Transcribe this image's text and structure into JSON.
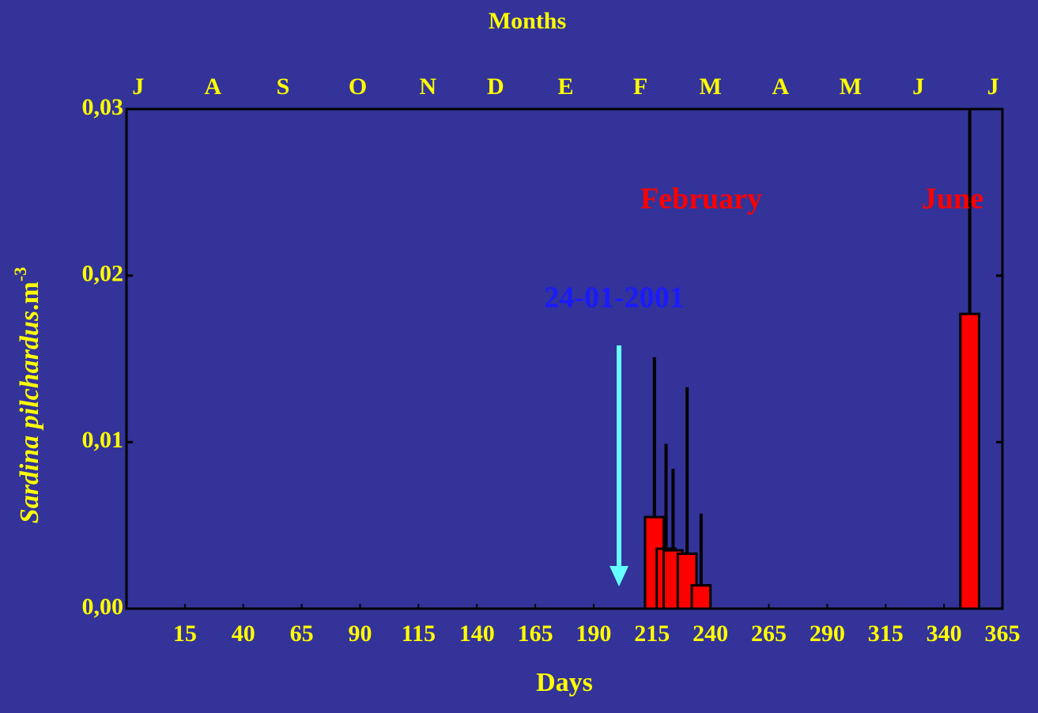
{
  "chart_data": {
    "type": "bar",
    "title": "Months",
    "xlabel": "Days",
    "ylabel": {
      "species": "Sardina pilchardus",
      "unit": ".m",
      "exponent": "-3"
    },
    "x": [
      1,
      13,
      34,
      43,
      58,
      72,
      86,
      98,
      119,
      132,
      146,
      160,
      177,
      191,
      205,
      216,
      221,
      224,
      230,
      236,
      254,
      293,
      306,
      322,
      337,
      351
    ],
    "values": [
      0,
      0,
      0,
      0,
      0,
      0,
      0,
      0,
      0,
      0,
      0,
      0,
      0,
      0,
      0,
      0.0055,
      0.0036,
      0.0035,
      0.0033,
      0.0014,
      0,
      0,
      0,
      0,
      0,
      0.0177
    ],
    "errors": [
      0,
      0,
      0,
      0,
      0,
      0,
      0,
      0,
      0,
      0,
      0,
      0,
      0,
      0,
      0,
      0.0096,
      0.0063,
      0.0049,
      0.01,
      0.0043,
      0,
      0,
      0,
      0,
      0,
      0.0123
    ],
    "bar_width": 8,
    "color": "#ff0000",
    "xlim": [
      -10,
      365
    ],
    "xticks": [
      15,
      40,
      65,
      90,
      115,
      140,
      165,
      190,
      215,
      240,
      265,
      290,
      315,
      340,
      365
    ],
    "month_ticks": [
      {
        "value": -5,
        "label": "J"
      },
      {
        "value": 27,
        "label": "A"
      },
      {
        "value": 57,
        "label": "S"
      },
      {
        "value": 89,
        "label": "O"
      },
      {
        "value": 119,
        "label": "N"
      },
      {
        "value": 148,
        "label": "D"
      },
      {
        "value": 178,
        "label": "E"
      },
      {
        "value": 210,
        "label": "F"
      },
      {
        "value": 240,
        "label": "M"
      },
      {
        "value": 270,
        "label": "A"
      },
      {
        "value": 300,
        "label": "M"
      },
      {
        "value": 329,
        "label": "J"
      },
      {
        "value": 361,
        "label": "J"
      }
    ],
    "ylim": [
      0,
      0.03
    ],
    "yticks": [
      {
        "value": 0,
        "label": "0,00"
      },
      {
        "value": 0.01,
        "label": "0,01"
      },
      {
        "value": 0.02,
        "label": "0,02"
      },
      {
        "value": 0.03,
        "label": "0,03"
      }
    ],
    "annotations": [
      {
        "text": "February",
        "color": "#ff0000"
      },
      {
        "text": "June",
        "color": "#ff0000"
      },
      {
        "text": "24-01-2001",
        "color": "#1a1aff"
      }
    ]
  }
}
